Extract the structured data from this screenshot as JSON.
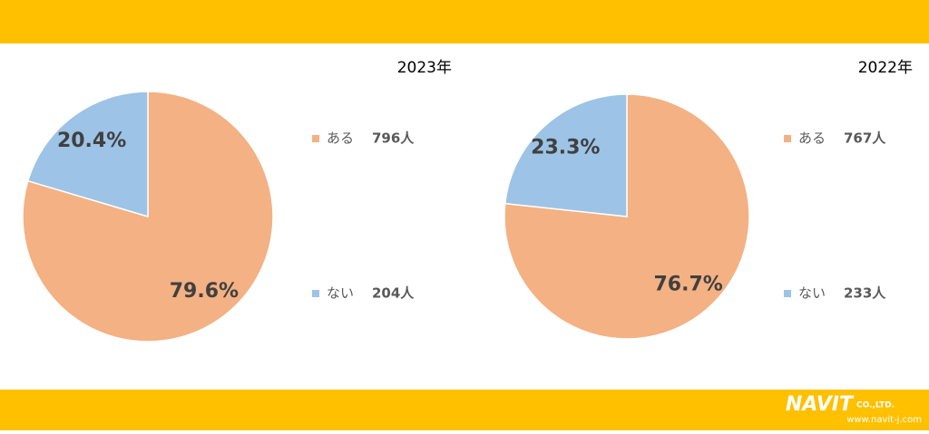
{
  "chart_data": [
    {
      "type": "pie",
      "title": "2023年",
      "categories": [
        "ある",
        "ない"
      ],
      "values": [
        79.6,
        20.4
      ],
      "value_labels": [
        "79.6%",
        "20.4%"
      ],
      "counts": [
        796,
        204
      ],
      "count_labels": [
        "796人",
        "204人"
      ],
      "colors": [
        "#f4b183",
        "#9dc3e6"
      ]
    },
    {
      "type": "pie",
      "title": "2022年",
      "categories": [
        "ある",
        "ない"
      ],
      "values": [
        76.7,
        23.3
      ],
      "value_labels": [
        "76.7%",
        "23.3%"
      ],
      "counts": [
        767,
        233
      ],
      "count_labels": [
        "767人",
        "233人"
      ],
      "colors": [
        "#f4b183",
        "#9dc3e6"
      ]
    }
  ],
  "footer": {
    "logo": "NAVIT",
    "company": "CO.,LTD.",
    "url": "www.navit-j.com"
  }
}
